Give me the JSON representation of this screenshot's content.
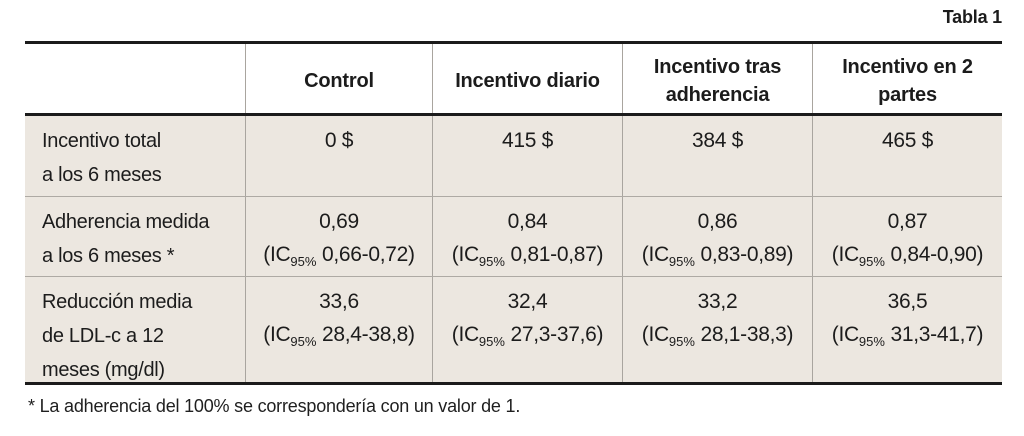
{
  "title": "Tabla 1",
  "footnote": "* La adherencia del 100% se correspondería con un valor de 1.",
  "colors": {
    "row_background": "#ece7e0",
    "rule_black": "#1b1b1b",
    "grid_gray": "#a9a59f"
  },
  "table": {
    "header": {
      "cols": [
        {
          "lines": [
            ""
          ]
        },
        {
          "lines": [
            "Control"
          ]
        },
        {
          "lines": [
            "Incentivo diario"
          ]
        },
        {
          "lines": [
            "Incentivo tras",
            "adherencia"
          ]
        },
        {
          "lines": [
            "Incentivo en 2",
            "partes"
          ]
        }
      ]
    },
    "rows": [
      {
        "label_lines": [
          "Incentivo total",
          "a los 6 meses"
        ],
        "cells": [
          {
            "value": "0 $"
          },
          {
            "value": "415 $"
          },
          {
            "value": "384 $"
          },
          {
            "value": "465 $"
          }
        ]
      },
      {
        "label_lines": [
          "Adherencia medida",
          "a los 6 meses *"
        ],
        "cells": [
          {
            "value": "0,69",
            "ci_pre": "(IC",
            "ci_sub": "95%",
            "ci_post": " 0,66-0,72)"
          },
          {
            "value": "0,84",
            "ci_pre": "(IC",
            "ci_sub": "95%",
            "ci_post": " 0,81-0,87)"
          },
          {
            "value": "0,86",
            "ci_pre": "(IC",
            "ci_sub": "95%",
            "ci_post": " 0,83-0,89)"
          },
          {
            "value": "0,87",
            "ci_pre": "(IC",
            "ci_sub": "95%",
            "ci_post": " 0,84-0,90)"
          }
        ]
      },
      {
        "label_lines": [
          "Reducción media",
          "de LDL-c a 12",
          "meses (mg/dl)"
        ],
        "cells": [
          {
            "value": "33,6",
            "ci_pre": "(IC",
            "ci_sub": "95%",
            "ci_post": " 28,4-38,8)"
          },
          {
            "value": "32,4",
            "ci_pre": "(IC",
            "ci_sub": "95%",
            "ci_post": " 27,3-37,6)"
          },
          {
            "value": "33,2",
            "ci_pre": "(IC",
            "ci_sub": "95%",
            "ci_post": " 28,1-38,3)"
          },
          {
            "value": "36,5",
            "ci_pre": "(IC",
            "ci_sub": "95%",
            "ci_post": " 31,3-41,7)"
          }
        ]
      }
    ]
  },
  "chart_data": {
    "type": "table",
    "title": "Tabla 1",
    "columns": [
      "",
      "Control",
      "Incentivo diario",
      "Incentivo tras adherencia",
      "Incentivo en 2 partes"
    ],
    "rows": [
      [
        "Incentivo total a los 6 meses",
        "0 $",
        "415 $",
        "384 $",
        "465 $"
      ],
      [
        "Adherencia medida a los 6 meses *",
        "0,69 (IC95% 0,66-0,72)",
        "0,84 (IC95% 0,81-0,87)",
        "0,86 (IC95% 0,83-0,89)",
        "0,87 (IC95% 0,84-0,90)"
      ],
      [
        "Reducción media de LDL-c a 12 meses (mg/dl)",
        "33,6 (IC95% 28,4-38,8)",
        "32,4 (IC95% 27,3-37,6)",
        "33,2 (IC95% 28,1-38,3)",
        "36,5 (IC95% 31,3-41,7)"
      ]
    ],
    "footnote": "* La adherencia del 100% se correspondería con un valor de 1."
  }
}
